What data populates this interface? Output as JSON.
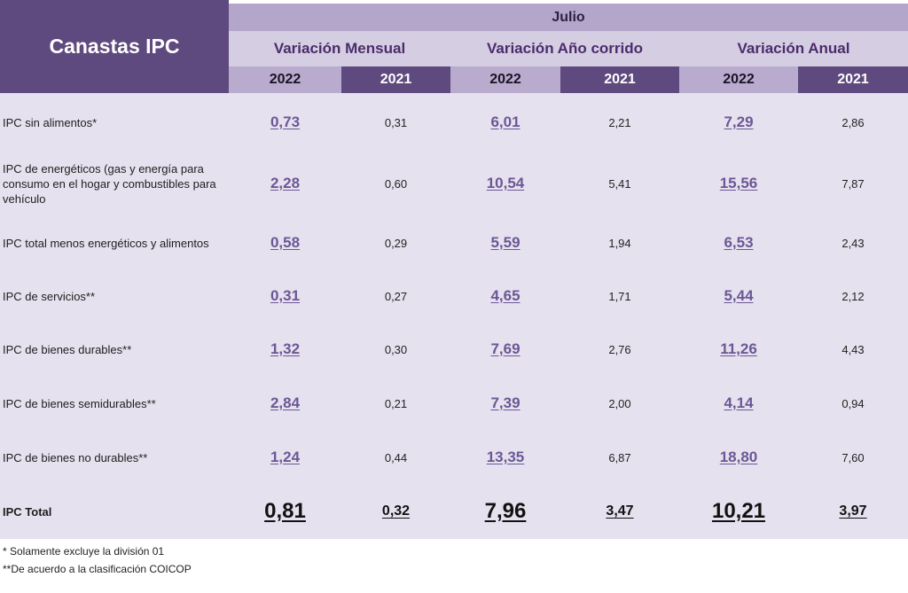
{
  "header": {
    "stub": "Canastas IPC",
    "month": "Julio",
    "groups": [
      "Variación Mensual",
      "Variación Año corrido",
      "Variación Anual"
    ],
    "years": [
      "2022",
      "2021",
      "2022",
      "2021",
      "2022",
      "2021"
    ]
  },
  "rows": [
    {
      "label": "IPC sin alimentos*",
      "values": [
        "0,73",
        "0,31",
        "6,01",
        "2,21",
        "7,29",
        "2,86"
      ]
    },
    {
      "label": "IPC de energéticos (gas y energía para consumo en el hogar y combustibles para vehículo",
      "values": [
        "2,28",
        "0,60",
        "10,54",
        "5,41",
        "15,56",
        "7,87"
      ]
    },
    {
      "label": "IPC total menos energéticos y alimentos",
      "values": [
        "0,58",
        "0,29",
        "5,59",
        "1,94",
        "6,53",
        "2,43"
      ]
    },
    {
      "label": "IPC de servicios**",
      "values": [
        "0,31",
        "0,27",
        "4,65",
        "1,71",
        "5,44",
        "2,12"
      ]
    },
    {
      "label": "IPC de bienes durables**",
      "values": [
        "1,32",
        "0,30",
        "7,69",
        "2,76",
        "11,26",
        "4,43"
      ]
    },
    {
      "label": "IPC de bienes semidurables**",
      "values": [
        "2,84",
        "0,21",
        "7,39",
        "2,00",
        "4,14",
        "0,94"
      ]
    },
    {
      "label": "IPC de bienes no durables**",
      "values": [
        "1,24",
        "0,44",
        "13,35",
        "6,87",
        "18,80",
        "7,60"
      ]
    }
  ],
  "total": {
    "label": "IPC Total",
    "values": [
      "0,81",
      "0,32",
      "7,96",
      "3,47",
      "10,21",
      "3,97"
    ]
  },
  "notes": [
    "* Solamente excluye la división 01",
    "**De acuerdo a la clasificación COICOP"
  ]
}
